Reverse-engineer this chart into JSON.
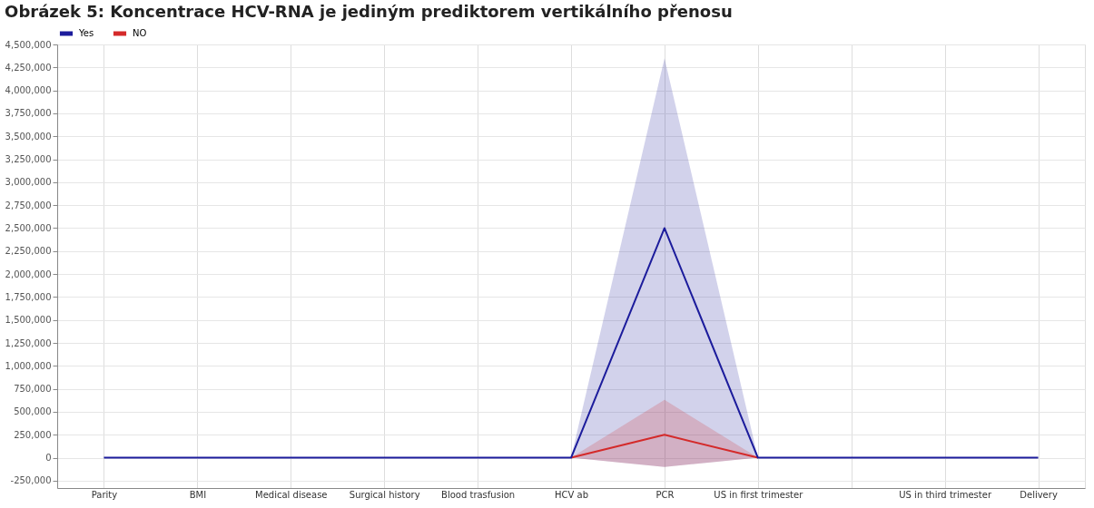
{
  "chart_data": {
    "type": "line",
    "title": "Obrázek 5: Koncentrace HCV-RNA je jediným prediktorem vertikálního přenosu",
    "categories": [
      "Parity",
      "BMI",
      "Medical disease",
      "Surgical history",
      "Blood trasfusion",
      "HCV ab",
      "PCR",
      "US in first trimester",
      null,
      "US in third trimester",
      "Delivery"
    ],
    "series": [
      {
        "name": "Yes",
        "color": "#1c1c9c",
        "values": [
          0,
          0,
          0,
          0,
          0,
          0,
          2500000,
          0,
          0,
          0,
          0
        ],
        "lower": [
          0,
          0,
          0,
          0,
          0,
          0,
          -100000,
          0,
          0,
          0,
          0
        ],
        "upper": [
          0,
          0,
          0,
          0,
          0,
          0,
          4350000,
          0,
          0,
          0,
          0
        ]
      },
      {
        "name": "NO",
        "color": "#d42a2a",
        "values": [
          null,
          null,
          null,
          null,
          null,
          0,
          250000,
          0,
          null,
          null,
          null
        ],
        "lower": [
          0,
          0,
          0,
          0,
          0,
          0,
          -100000,
          0,
          0,
          0,
          0
        ],
        "upper": [
          0,
          0,
          0,
          0,
          0,
          0,
          630000,
          0,
          0,
          0,
          0
        ]
      }
    ],
    "ylim": [
      -330000,
      4500000
    ],
    "yticks": [
      {
        "value": -250000,
        "label": "-250,000"
      },
      0,
      {
        "value": 250000,
        "label": "250,000"
      },
      {
        "value": 500000,
        "label": "500,000"
      },
      {
        "value": 750000,
        "label": "750,000"
      },
      {
        "value": 1000000,
        "label": "1,000,000"
      },
      {
        "value": 1250000,
        "label": "1,250,000"
      },
      {
        "value": 1500000,
        "label": "1,500,000"
      },
      {
        "value": 1750000,
        "label": "1,750,000"
      },
      {
        "value": 2000000,
        "label": "2,000,000"
      },
      {
        "value": 2250000,
        "label": "2,250,000"
      },
      {
        "value": 2500000,
        "label": "2,500,000"
      },
      {
        "value": 2750000,
        "label": "2,750,000"
      },
      {
        "value": 3000000,
        "label": "3,000,000"
      },
      {
        "value": 3250000,
        "label": "3,250,000"
      },
      {
        "value": 3500000,
        "label": "3,500,000"
      },
      {
        "value": 3750000,
        "label": "3,750,000"
      },
      {
        "value": 4000000,
        "label": "4,000,000"
      },
      {
        "value": 4250000,
        "label": "4,250,000"
      },
      {
        "value": 4500000,
        "label": "4,500,000"
      }
    ],
    "grid": true,
    "legend": "top left",
    "marker": "none",
    "line_style": "solid"
  }
}
